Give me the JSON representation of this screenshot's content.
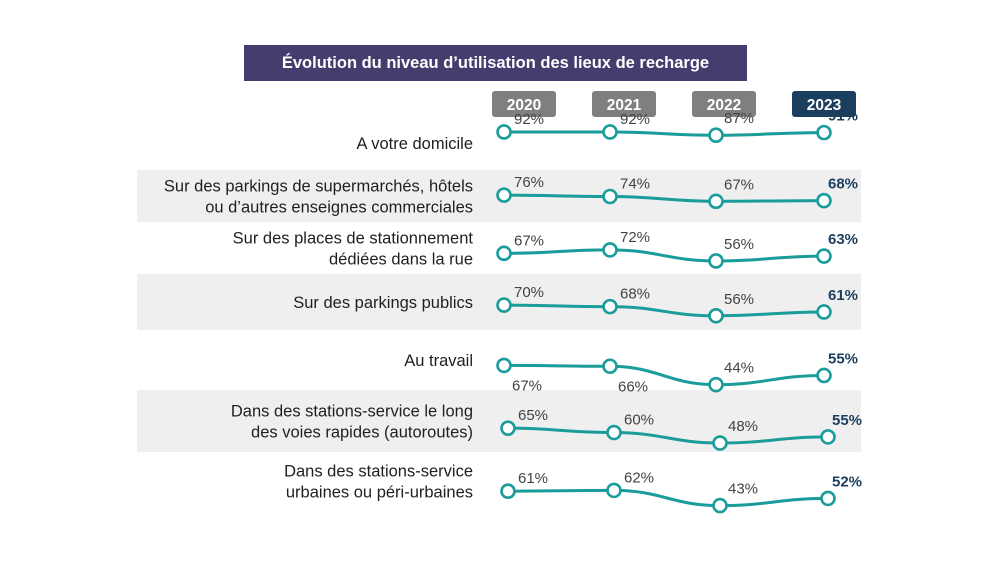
{
  "chart_data": {
    "type": "line",
    "title": "Évolution du niveau d’utilisation des lieux de recharge",
    "years": [
      "2020",
      "2021",
      "2022",
      "2023"
    ],
    "rows": [
      {
        "label_lines": [
          "A votre domicile"
        ],
        "values": [
          92,
          92,
          87,
          91
        ],
        "labels": [
          "92%",
          "92%",
          "87%",
          "91%"
        ]
      },
      {
        "label_lines": [
          "Sur des parkings de supermarchés, hôtels",
          "ou d’autres enseignes commerciales"
        ],
        "values": [
          76,
          74,
          67,
          68
        ],
        "labels": [
          "76%",
          "74%",
          "67%",
          "68%"
        ]
      },
      {
        "label_lines": [
          "Sur des places de stationnement",
          "dédiées dans la rue"
        ],
        "values": [
          67,
          72,
          56,
          63
        ],
        "labels": [
          "67%",
          "72%",
          "56%",
          "63%"
        ]
      },
      {
        "label_lines": [
          "Sur des parkings publics"
        ],
        "values": [
          70,
          68,
          56,
          61
        ],
        "labels": [
          "70%",
          "68%",
          "56%",
          "61%"
        ]
      },
      {
        "label_lines": [
          "Au travail"
        ],
        "values": [
          67,
          66,
          44,
          55
        ],
        "labels": [
          "67%",
          "66%",
          "44%",
          "55%"
        ]
      },
      {
        "label_lines": [
          "Dans des stations-service le long",
          "des voies rapides (autoroutes)"
        ],
        "values": [
          65,
          60,
          48,
          55
        ],
        "labels": [
          "65%",
          "60%",
          "48%",
          "55%"
        ]
      },
      {
        "label_lines": [
          "Dans des stations-service",
          "urbaines ou péri-urbaines"
        ],
        "values": [
          61,
          62,
          43,
          52
        ],
        "labels": [
          "61%",
          "62%",
          "43%",
          "52%"
        ]
      }
    ],
    "colors": {
      "title_bg": "#453d6e",
      "year_badge": "#7f7f7f",
      "year_badge_highlight": "#1c3e5e",
      "line": "#1a9c9a",
      "band": "#efefef",
      "highlight_text": "#1c3e5e"
    }
  }
}
